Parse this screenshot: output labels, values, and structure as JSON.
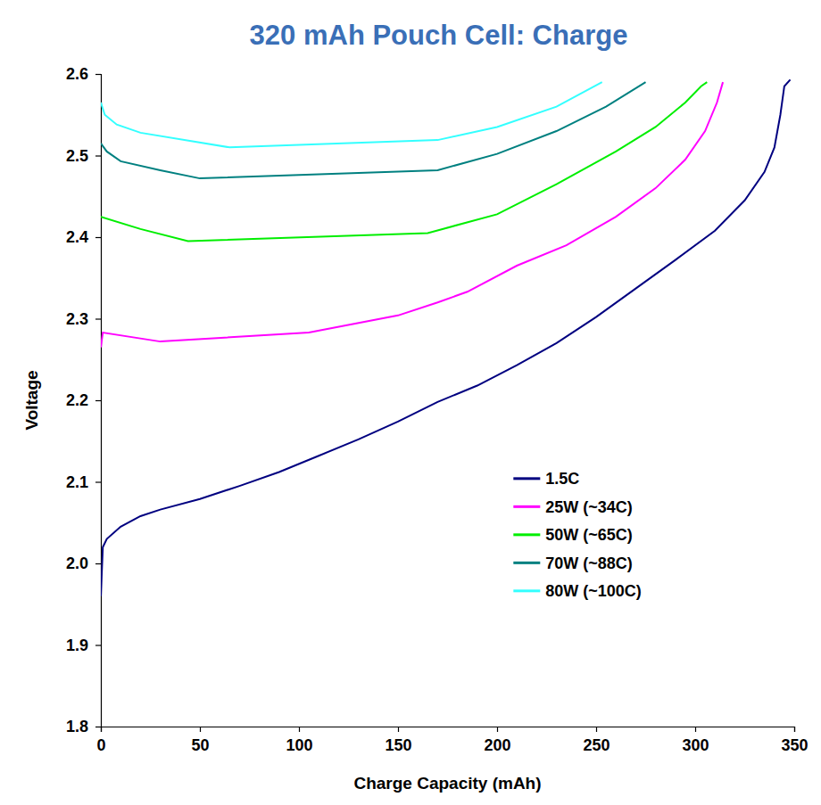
{
  "chart_data": {
    "type": "line",
    "title": "320 mAh Pouch Cell: Charge",
    "x_label": "Charge Capacity (mAh)",
    "y_label": "Voltage",
    "xlim": [
      0,
      350
    ],
    "xticks": [
      0,
      50,
      100,
      150,
      200,
      250,
      300,
      350
    ],
    "ylim": [
      1.8,
      2.6
    ],
    "yticks": [
      1.8,
      1.9,
      {
        "value": 2,
        "label": "2.0"
      },
      2.1,
      2.2,
      2.3,
      2.4,
      2.5,
      2.6
    ],
    "grid": false,
    "legend": "lower right",
    "series": [
      {
        "name": "1.5C",
        "color": "#000080",
        "x": [
          0,
          1,
          3,
          10,
          20,
          30,
          50,
          70,
          90,
          110,
          130,
          150,
          170,
          190,
          210,
          230,
          250,
          270,
          290,
          310,
          325,
          335,
          340,
          343,
          345,
          348
        ],
        "values": [
          1.96,
          2.02,
          2.03,
          2.045,
          2.058,
          2.066,
          2.079,
          2.095,
          2.112,
          2.132,
          2.152,
          2.174,
          2.198,
          2.218,
          2.243,
          2.27,
          2.302,
          2.337,
          2.372,
          2.408,
          2.445,
          2.48,
          2.51,
          2.55,
          2.585,
          2.593
        ]
      },
      {
        "name": "25W (~34C)",
        "color": "#ff00ff",
        "x": [
          0,
          1,
          30,
          105,
          150,
          170,
          185,
          210,
          235,
          260,
          280,
          295,
          305,
          311,
          314
        ],
        "values": [
          2.265,
          2.283,
          2.272,
          2.283,
          2.304,
          2.32,
          2.333,
          2.365,
          2.39,
          2.425,
          2.46,
          2.495,
          2.53,
          2.565,
          2.59
        ]
      },
      {
        "name": "50W (~65C)",
        "color": "#00ee00",
        "x": [
          0,
          20,
          44,
          165,
          200,
          230,
          260,
          280,
          295,
          303,
          306
        ],
        "values": [
          2.425,
          2.41,
          2.395,
          2.405,
          2.428,
          2.465,
          2.505,
          2.535,
          2.565,
          2.585,
          2.59
        ]
      },
      {
        "name": "70W (~88C)",
        "color": "#008080",
        "x": [
          0,
          3,
          10,
          30,
          50,
          170,
          200,
          230,
          255,
          275
        ],
        "values": [
          2.515,
          2.505,
          2.493,
          2.482,
          2.472,
          2.482,
          2.502,
          2.53,
          2.56,
          2.59
        ]
      },
      {
        "name": "80W (~100C)",
        "color": "#33ffff",
        "x": [
          0,
          2,
          8,
          20,
          65,
          170,
          200,
          230,
          253
        ],
        "values": [
          2.565,
          2.55,
          2.538,
          2.528,
          2.51,
          2.519,
          2.535,
          2.56,
          2.59
        ]
      }
    ]
  }
}
